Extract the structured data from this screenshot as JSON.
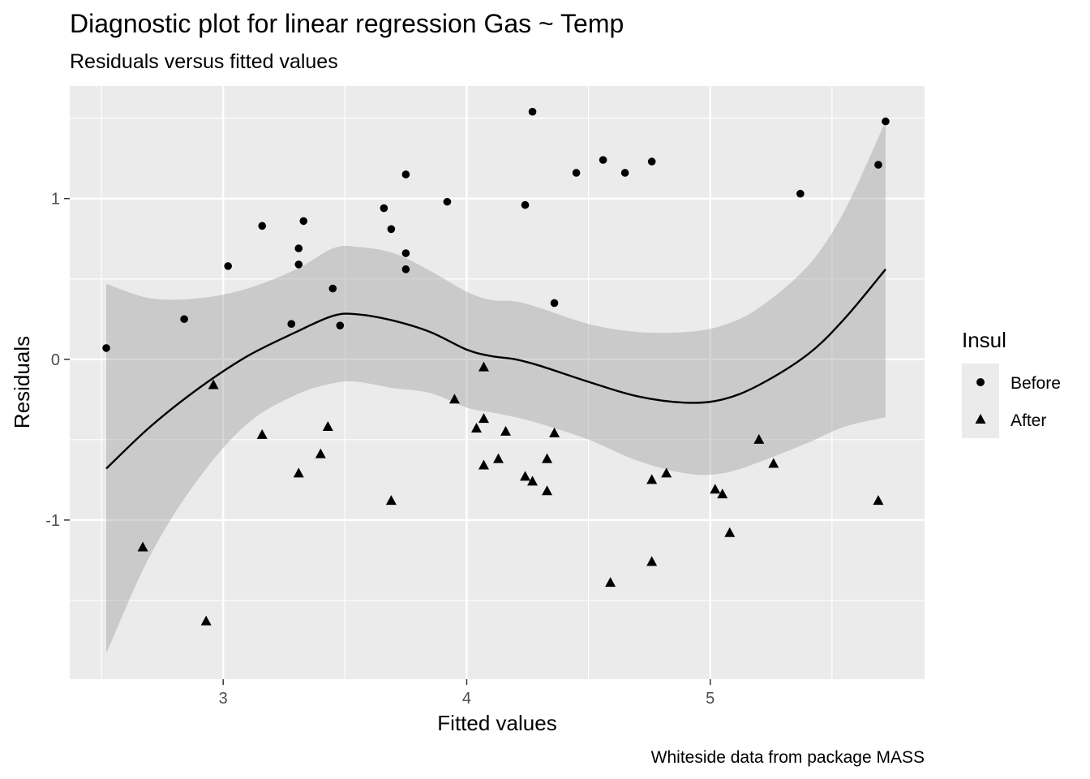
{
  "chart_data": {
    "type": "scatter",
    "title": "Diagnostic plot for linear regression  Gas ~ Temp",
    "subtitle": "Residuals versus fitted values",
    "caption": "Whiteside data from package MASS",
    "xlabel": "Fitted values",
    "ylabel": "Residuals",
    "xlim": [
      2.37,
      5.88
    ],
    "ylim": [
      -1.99,
      1.7
    ],
    "x_ticks": [
      3,
      4,
      5
    ],
    "x_tick_labels": [
      "3",
      "4",
      "5"
    ],
    "y_ticks": [
      -1,
      0,
      1
    ],
    "y_tick_labels": [
      "-1",
      "0",
      "1"
    ],
    "grid": true,
    "legend": {
      "title": "Insul",
      "position": "right",
      "entries": [
        {
          "label": "Before",
          "shape": "circle"
        },
        {
          "label": "After",
          "shape": "triangle"
        }
      ]
    },
    "series": [
      {
        "name": "Before",
        "shape": "circle",
        "points": [
          [
            2.52,
            0.07
          ],
          [
            2.84,
            0.25
          ],
          [
            3.02,
            0.58
          ],
          [
            3.16,
            0.83
          ],
          [
            3.28,
            0.22
          ],
          [
            3.31,
            0.69
          ],
          [
            3.31,
            0.59
          ],
          [
            3.33,
            0.86
          ],
          [
            3.45,
            0.44
          ],
          [
            3.48,
            0.21
          ],
          [
            3.66,
            0.94
          ],
          [
            3.69,
            0.81
          ],
          [
            3.75,
            1.15
          ],
          [
            3.75,
            0.66
          ],
          [
            3.75,
            0.56
          ],
          [
            3.92,
            0.98
          ],
          [
            4.24,
            0.96
          ],
          [
            4.27,
            1.54
          ],
          [
            4.36,
            0.35
          ],
          [
            4.45,
            1.16
          ],
          [
            4.56,
            1.24
          ],
          [
            4.65,
            1.16
          ],
          [
            4.76,
            1.23
          ],
          [
            5.37,
            1.03
          ],
          [
            5.69,
            1.21
          ],
          [
            5.72,
            1.48
          ]
        ]
      },
      {
        "name": "After",
        "shape": "triangle",
        "points": [
          [
            2.67,
            -1.17
          ],
          [
            2.93,
            -1.63
          ],
          [
            2.96,
            -0.16
          ],
          [
            3.16,
            -0.47
          ],
          [
            3.31,
            -0.71
          ],
          [
            3.4,
            -0.59
          ],
          [
            3.43,
            -0.42
          ],
          [
            3.69,
            -0.88
          ],
          [
            3.95,
            -0.25
          ],
          [
            4.04,
            -0.43
          ],
          [
            4.07,
            -0.05
          ],
          [
            4.07,
            -0.37
          ],
          [
            4.07,
            -0.66
          ],
          [
            4.13,
            -0.62
          ],
          [
            4.16,
            -0.45
          ],
          [
            4.24,
            -0.73
          ],
          [
            4.27,
            -0.76
          ],
          [
            4.33,
            -0.82
          ],
          [
            4.33,
            -0.62
          ],
          [
            4.36,
            -0.46
          ],
          [
            4.59,
            -1.39
          ],
          [
            4.76,
            -1.26
          ],
          [
            4.76,
            -0.75
          ],
          [
            4.82,
            -0.71
          ],
          [
            5.02,
            -0.81
          ],
          [
            5.05,
            -0.84
          ],
          [
            5.08,
            -1.08
          ],
          [
            5.2,
            -0.5
          ],
          [
            5.26,
            -0.65
          ],
          [
            5.69,
            -0.88
          ]
        ]
      }
    ],
    "smooth": {
      "method": "loess",
      "fit": [
        [
          2.52,
          -0.68
        ],
        [
          2.7,
          -0.42
        ],
        [
          2.9,
          -0.18
        ],
        [
          3.1,
          0.02
        ],
        [
          3.3,
          0.17
        ],
        [
          3.45,
          0.27
        ],
        [
          3.55,
          0.28
        ],
        [
          3.7,
          0.24
        ],
        [
          3.85,
          0.17
        ],
        [
          4.0,
          0.06
        ],
        [
          4.1,
          0.02
        ],
        [
          4.2,
          0.0
        ],
        [
          4.3,
          -0.04
        ],
        [
          4.5,
          -0.14
        ],
        [
          4.7,
          -0.23
        ],
        [
          4.9,
          -0.27
        ],
        [
          5.05,
          -0.25
        ],
        [
          5.2,
          -0.16
        ],
        [
          5.4,
          0.03
        ],
        [
          5.55,
          0.25
        ],
        [
          5.72,
          0.56
        ]
      ],
      "ci_upper": [
        [
          2.52,
          0.47
        ],
        [
          2.7,
          0.38
        ],
        [
          2.9,
          0.38
        ],
        [
          3.1,
          0.44
        ],
        [
          3.3,
          0.56
        ],
        [
          3.45,
          0.69
        ],
        [
          3.55,
          0.7
        ],
        [
          3.7,
          0.66
        ],
        [
          3.85,
          0.55
        ],
        [
          4.0,
          0.42
        ],
        [
          4.1,
          0.37
        ],
        [
          4.2,
          0.36
        ],
        [
          4.3,
          0.32
        ],
        [
          4.5,
          0.22
        ],
        [
          4.7,
          0.17
        ],
        [
          4.9,
          0.17
        ],
        [
          5.05,
          0.21
        ],
        [
          5.2,
          0.32
        ],
        [
          5.4,
          0.58
        ],
        [
          5.55,
          0.92
        ],
        [
          5.72,
          1.48
        ]
      ],
      "ci_lower": [
        [
          2.52,
          -1.83
        ],
        [
          2.7,
          -1.22
        ],
        [
          2.9,
          -0.74
        ],
        [
          3.1,
          -0.4
        ],
        [
          3.3,
          -0.22
        ],
        [
          3.45,
          -0.15
        ],
        [
          3.55,
          -0.14
        ],
        [
          3.7,
          -0.18
        ],
        [
          3.85,
          -0.21
        ],
        [
          4.0,
          -0.3
        ],
        [
          4.1,
          -0.33
        ],
        [
          4.2,
          -0.36
        ],
        [
          4.3,
          -0.4
        ],
        [
          4.5,
          -0.5
        ],
        [
          4.7,
          -0.63
        ],
        [
          4.9,
          -0.71
        ],
        [
          5.05,
          -0.71
        ],
        [
          5.2,
          -0.64
        ],
        [
          5.4,
          -0.52
        ],
        [
          5.55,
          -0.42
        ],
        [
          5.72,
          -0.36
        ]
      ]
    }
  }
}
